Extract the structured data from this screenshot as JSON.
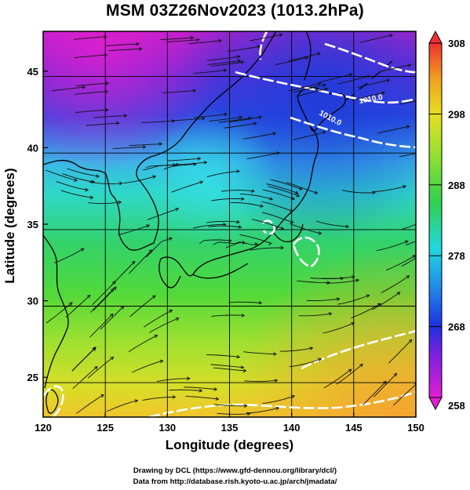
{
  "title": "MSM 03Z26Nov2023 (1013.2hPa)",
  "xlabel": "Longitude (degrees)",
  "ylabel": "Latitude  (degrees)",
  "credit_line1": "Drawing by DCL (https://www.gfd-dennou.org/library/dcl/)",
  "credit_line2": "Data from http://database.rish.kyoto-u.ac.jp/arch/jmadata/",
  "chart_data": {
    "type": "heatmap",
    "title": "MSM 03Z26Nov2023 (1013.2hPa)",
    "xlabel": "Longitude (degrees)",
    "ylabel": "Latitude  (degrees)",
    "xlim": [
      120,
      150
    ],
    "ylim": [
      22.4,
      47.6
    ],
    "xticks": [
      120,
      125,
      130,
      135,
      140,
      145,
      150
    ],
    "yticks": [
      25,
      30,
      35,
      40,
      45
    ],
    "grid": true,
    "colorbar": {
      "min": 258,
      "max": 308,
      "ticks": [
        258,
        268,
        278,
        288,
        298,
        308
      ],
      "colors": [
        "#e020d0",
        "#6020e0",
        "#1a3ee0",
        "#20d8e0",
        "#30d040",
        "#e8e020",
        "#f0a020",
        "#f03030"
      ]
    },
    "contour_labels": [
      "1010.0",
      "1010.0"
    ],
    "description_fields": {
      "temperature_K": [
        {
          "lon": 122,
          "lat": 46,
          "value": 259
        },
        {
          "lon": 130,
          "lat": 44,
          "value": 268
        },
        {
          "lon": 130,
          "lat": 41,
          "value": 278
        },
        {
          "lon": 125,
          "lat": 38,
          "value": 284
        },
        {
          "lon": 130,
          "lat": 33,
          "value": 288
        },
        {
          "lon": 135,
          "lat": 28,
          "value": 292
        },
        {
          "lon": 145,
          "lat": 24,
          "value": 298
        },
        {
          "lon": 145,
          "lat": 44,
          "value": 270
        },
        {
          "lon": 145,
          "lat": 35,
          "value": 290
        }
      ]
    }
  }
}
